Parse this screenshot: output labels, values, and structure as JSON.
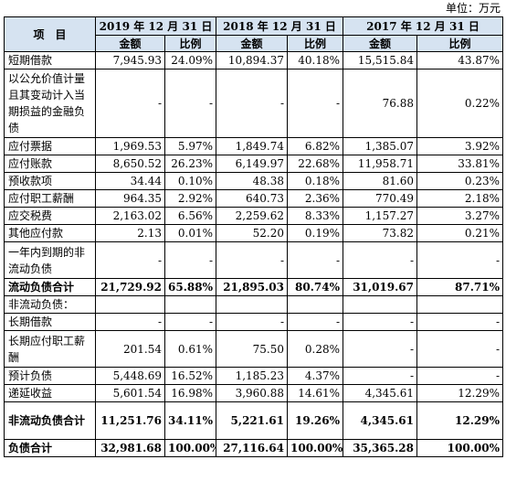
{
  "unit_label": "单位：万元",
  "header": {
    "item_label": "项　目",
    "years": [
      "2019 年 12 月 31 日",
      "2018 年 12 月 31 日",
      "2017 年 12 月 31 日"
    ],
    "sub_amount": "金额",
    "sub_ratio": "比例"
  },
  "rows": [
    {
      "label": "短期借款",
      "v": [
        "7,945.93",
        "24.09%",
        "10,894.37",
        "40.18%",
        "15,515.84",
        "43.87%"
      ]
    },
    {
      "label": "以公允价值计量且其变动计入当期损益的金融负债",
      "v": [
        "-",
        "-",
        "-",
        "-",
        "76.88",
        "0.22%"
      ]
    },
    {
      "label": "应付票据",
      "v": [
        "1,969.53",
        "5.97%",
        "1,849.74",
        "6.82%",
        "1,385.07",
        "3.92%"
      ]
    },
    {
      "label": "应付账款",
      "v": [
        "8,650.52",
        "26.23%",
        "6,149.97",
        "22.68%",
        "11,958.71",
        "33.81%"
      ]
    },
    {
      "label": "预收款项",
      "v": [
        "34.44",
        "0.10%",
        "48.38",
        "0.18%",
        "81.60",
        "0.23%"
      ]
    },
    {
      "label": "应付职工薪酬",
      "v": [
        "964.35",
        "2.92%",
        "640.73",
        "2.36%",
        "770.49",
        "2.18%"
      ]
    },
    {
      "label": "应交税费",
      "v": [
        "2,163.02",
        "6.56%",
        "2,259.62",
        "8.33%",
        "1,157.27",
        "3.27%"
      ]
    },
    {
      "label": "其他应付款",
      "v": [
        "2.13",
        "0.01%",
        "52.20",
        "0.19%",
        "73.82",
        "0.21%"
      ]
    },
    {
      "label": "一年内到期的非流动负债",
      "v": [
        "-",
        "-",
        "-",
        "-",
        "-",
        "-"
      ]
    },
    {
      "label": "流动负债合计",
      "v": [
        "21,729.92",
        "65.88%",
        "21,895.03",
        "80.74%",
        "31,019.67",
        "87.71%"
      ]
    },
    {
      "label": "非流动负债：",
      "v": [
        "",
        "",
        "",
        "",
        "",
        ""
      ]
    },
    {
      "label": "长期借款",
      "v": [
        "-",
        "-",
        "-",
        "-",
        "-",
        "-"
      ]
    },
    {
      "label": "长期应付职工薪酬",
      "v": [
        "201.54",
        "0.61%",
        "75.50",
        "0.28%",
        "-",
        "-"
      ]
    },
    {
      "label": "预计负债",
      "v": [
        "5,448.69",
        "16.52%",
        "1,185.23",
        "4.37%",
        "-",
        "-"
      ]
    },
    {
      "label": "递延收益",
      "v": [
        "5,601.54",
        "16.98%",
        "3,960.88",
        "14.61%",
        "4,345.61",
        "12.29%"
      ]
    },
    {
      "label": "非流动负债合计",
      "v": [
        "11,251.76",
        "34.11%",
        "5,221.61",
        "19.26%",
        "4,345.61",
        "12.29%"
      ]
    },
    {
      "label": "负债合计",
      "v": [
        "32,981.68",
        "100.00%",
        "27,116.64",
        "100.00%",
        "35,365.28",
        "100.00%"
      ]
    }
  ]
}
